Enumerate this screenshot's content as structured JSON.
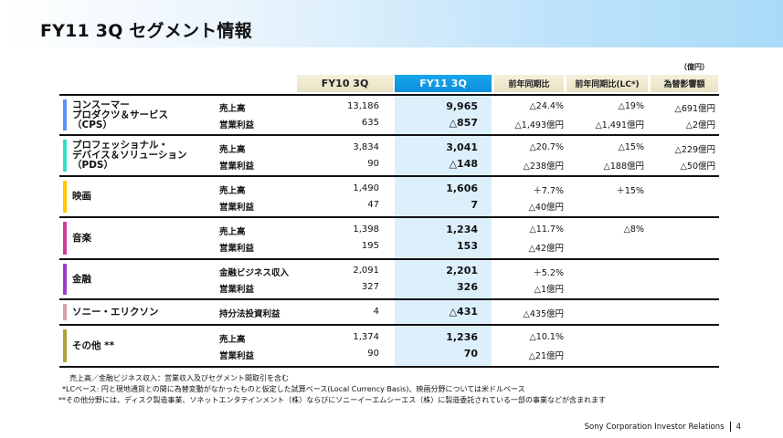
{
  "page": {
    "title": "FY11 3Q  セグメント情報",
    "unit": "（億円）",
    "footer_company": "Sony Corporation  Investor Relations",
    "page_number": "4"
  },
  "columns": {
    "fy10": "FY10 3Q",
    "fy11": "FY11 3Q",
    "yoy": "前年同期比",
    "yoy_lc": "前年同期比(LC*)",
    "fx_impact": "為替影響額"
  },
  "segments": [
    {
      "name_lines": [
        "コンスーマー",
        "プロダクツ＆サービス",
        "（CPS）"
      ],
      "color": "#5b8ff9",
      "rows": [
        {
          "metric": "売上高",
          "fy10": "13,186",
          "fy11": "9,965",
          "yoy": "△24.4%",
          "yoy_lc": "△19%",
          "fx": "△691億円"
        },
        {
          "metric": "営業利益",
          "fy10": "635",
          "fy11": "△857",
          "yoy": "△1,493億円",
          "yoy_lc": "△1,491億円",
          "fx": "△2億円"
        }
      ]
    },
    {
      "name_lines": [
        "プロフェッショナル・",
        "デバイス＆ソリューション",
        "（PDS）"
      ],
      "color": "#2ee0c0",
      "rows": [
        {
          "metric": "売上高",
          "fy10": "3,834",
          "fy11": "3,041",
          "yoy": "△20.7%",
          "yoy_lc": "△15%",
          "fx": "△229億円"
        },
        {
          "metric": "営業利益",
          "fy10": "90",
          "fy11": "△148",
          "yoy": "△238億円",
          "yoy_lc": "△188億円",
          "fx": "△50億円"
        }
      ]
    },
    {
      "name_lines": [
        "映画"
      ],
      "color": "#ffc800",
      "rows": [
        {
          "metric": "売上高",
          "fy10": "1,490",
          "fy11": "1,606",
          "yoy": "＋7.7%",
          "yoy_lc": "＋15%",
          "fx": ""
        },
        {
          "metric": "営業利益",
          "fy10": "47",
          "fy11": "7",
          "yoy": "△40億円",
          "yoy_lc": "",
          "fx": ""
        }
      ]
    },
    {
      "name_lines": [
        "音楽"
      ],
      "color": "#d03a9e",
      "rows": [
        {
          "metric": "売上高",
          "fy10": "1,398",
          "fy11": "1,234",
          "yoy": "△11.7%",
          "yoy_lc": "△8%",
          "fx": ""
        },
        {
          "metric": "営業利益",
          "fy10": "195",
          "fy11": "153",
          "yoy": "△42億円",
          "yoy_lc": "",
          "fx": ""
        }
      ]
    },
    {
      "name_lines": [
        "金融"
      ],
      "color": "#9b3ad0",
      "rows": [
        {
          "metric": "金融ビジネス収入",
          "fy10": "2,091",
          "fy11": "2,201",
          "yoy": "＋5.2%",
          "yoy_lc": "",
          "fx": ""
        },
        {
          "metric": "営業利益",
          "fy10": "327",
          "fy11": "326",
          "yoy": "△1億円",
          "yoy_lc": "",
          "fx": ""
        }
      ]
    },
    {
      "name_lines": [
        "ソニー・エリクソン"
      ],
      "color": "#d8a0a8",
      "rows": [
        {
          "metric": "持分法投資利益",
          "fy10": "4",
          "fy11": "△431",
          "yoy": "△435億円",
          "yoy_lc": "",
          "fx": ""
        }
      ]
    },
    {
      "name_lines": [
        "その他 **"
      ],
      "color": "#b0a040",
      "rows": [
        {
          "metric": "売上高",
          "fy10": "1,374",
          "fy11": "1,236",
          "yoy": "△10.1%",
          "yoy_lc": "",
          "fx": ""
        },
        {
          "metric": "営業利益",
          "fy10": "90",
          "fy11": "70",
          "yoy": "△21億円",
          "yoy_lc": "",
          "fx": ""
        }
      ]
    }
  ],
  "footnotes": [
    "売上高／金融ビジネス収入：営業収入及びセグメント間取引を含む",
    "*LCベース: 円と現地通貨との間に為替変動がなかったものと仮定した試算ベース(Local Currency Basis)、映画分野については米ドルベース",
    "**その他分野には、ディスク製造事業、ソネットエンタテインメント（株）ならびにソニーイーエムシーエス（株）に製造委託されている一部の事業などが含まれます"
  ]
}
